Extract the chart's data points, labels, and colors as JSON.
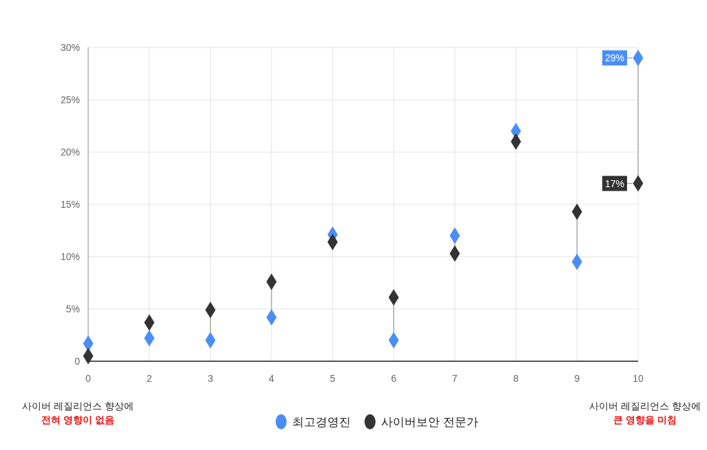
{
  "chart_data": {
    "type": "scatter",
    "categories": [
      "0",
      "2",
      "3",
      "4",
      "5",
      "6",
      "7",
      "8",
      "9",
      "10"
    ],
    "ylim": [
      0,
      30
    ],
    "yticks": [
      {
        "value": 0,
        "label": "0"
      },
      {
        "value": 5,
        "label": "5%"
      },
      {
        "value": 10,
        "label": "10%"
      },
      {
        "value": 15,
        "label": "15%"
      },
      {
        "value": 20,
        "label": "20%"
      },
      {
        "value": 25,
        "label": "25%"
      },
      {
        "value": 30,
        "label": "30%"
      }
    ],
    "grid": true,
    "legend": "bottom",
    "marker": "diamond",
    "series": [
      {
        "name": "최고경영진",
        "color": "#4a8ef5",
        "values": [
          1.7,
          2.2,
          2.0,
          4.2,
          12.1,
          2.0,
          12.0,
          22.0,
          9.5,
          29
        ],
        "value_labels": [
          null,
          null,
          null,
          null,
          null,
          null,
          null,
          null,
          null,
          "29%"
        ]
      },
      {
        "name": "사이버보안 전문가",
        "color": "#333333",
        "values": [
          0.5,
          3.7,
          4.9,
          7.6,
          11.4,
          6.1,
          10.3,
          21.0,
          14.3,
          17
        ],
        "value_labels": [
          null,
          null,
          null,
          null,
          null,
          null,
          null,
          null,
          null,
          "17%"
        ]
      }
    ],
    "annotations": [
      "사이버 레질리언스 향상에",
      "전혀 영향이 없음",
      "사이버 레질리언스 향상에",
      "큰 영향을 미침"
    ]
  }
}
